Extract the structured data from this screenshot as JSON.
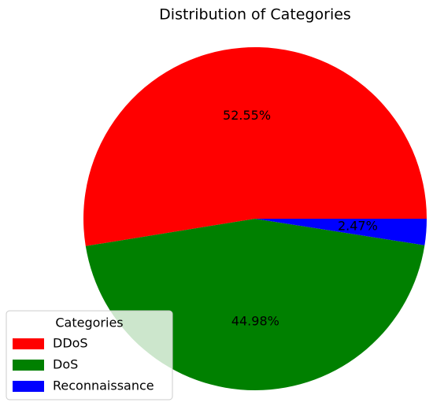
{
  "chart_data": {
    "type": "pie",
    "title": "Distribution of Categories",
    "categories": [
      "DDoS",
      "DoS",
      "Reconnaissance"
    ],
    "values": [
      52.55,
      44.98,
      2.47
    ],
    "value_labels": [
      "52.55%",
      "44.98%",
      "2.47%"
    ],
    "colors": [
      "#ff0000",
      "#008000",
      "#0000ff"
    ],
    "legend_title": "Categories",
    "legend": "lower left"
  }
}
